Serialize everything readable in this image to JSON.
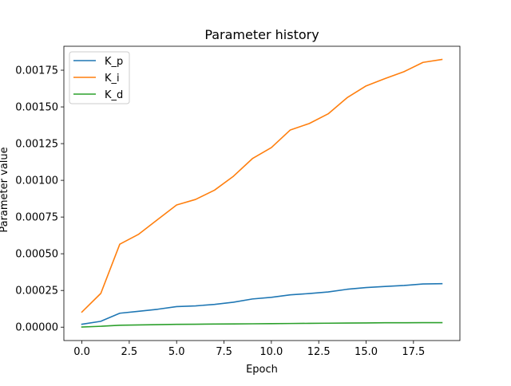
{
  "chart_data": {
    "type": "line",
    "title": "Parameter history",
    "xlabel": "Epoch",
    "ylabel": "Parameter value",
    "xlim": [
      -0.95,
      19.95
    ],
    "ylim": [
      -9.11e-05,
      0.0019131
    ],
    "x_ticks": [
      0.0,
      2.5,
      5.0,
      7.5,
      10.0,
      12.5,
      15.0,
      17.5
    ],
    "x_tick_labels": [
      "0.0",
      "2.5",
      "5.0",
      "7.5",
      "10.0",
      "12.5",
      "15.0",
      "17.5"
    ],
    "y_ticks": [
      0.0,
      0.00025,
      0.0005,
      0.00075,
      0.001,
      0.00125,
      0.0015,
      0.00175
    ],
    "y_tick_labels": [
      "0.00000",
      "0.00025",
      "0.00050",
      "0.00075",
      "0.00100",
      "0.00125",
      "0.00150",
      "0.00175"
    ],
    "grid": false,
    "legend_position": "top-left",
    "x": [
      0,
      1,
      2,
      3,
      4,
      5,
      6,
      7,
      8,
      9,
      10,
      11,
      12,
      13,
      14,
      15,
      16,
      17,
      18,
      19
    ],
    "series": [
      {
        "name": "K_p",
        "color": "#1f77b4",
        "values": [
          2e-05,
          4e-05,
          9.5e-05,
          0.000108,
          0.000122,
          0.00014,
          0.000145,
          0.000155,
          0.00017,
          0.000192,
          0.000203,
          0.00022,
          0.000229,
          0.00024,
          0.000258,
          0.00027,
          0.000277,
          0.000284,
          0.000294,
          0.000296
        ]
      },
      {
        "name": "K_i",
        "color": "#ff7f0e",
        "values": [
          0.000103,
          0.00023,
          0.000565,
          0.000633,
          0.000733,
          0.000832,
          0.00087,
          0.000933,
          0.001028,
          0.001148,
          0.001223,
          0.001343,
          0.001387,
          0.001453,
          0.001563,
          0.001643,
          0.001693,
          0.00174,
          0.001803,
          0.001823
        ]
      },
      {
        "name": "K_d",
        "color": "#2ca02c",
        "values": [
          1e-06,
          6e-06,
          1.3e-05,
          1.5e-05,
          1.7e-05,
          1.9e-05,
          2e-05,
          2.1e-05,
          2.2e-05,
          2.3e-05,
          2.4e-05,
          2.5e-05,
          2.6e-05,
          2.7e-05,
          2.8e-05,
          2.9e-05,
          3e-05,
          3e-05,
          3.1e-05,
          3.1e-05
        ]
      }
    ]
  }
}
